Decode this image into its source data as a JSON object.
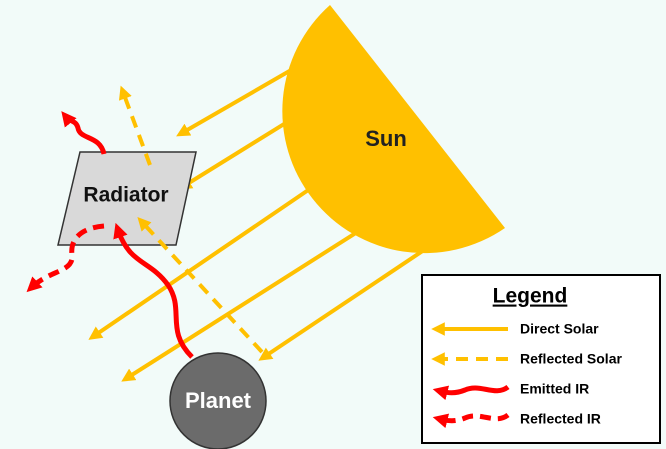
{
  "sun": {
    "label": "Sun"
  },
  "radiator": {
    "label": "Radiator"
  },
  "planet": {
    "label": "Planet"
  },
  "legend": {
    "title": "Legend",
    "items": [
      "Direct Solar",
      "Reflected Solar",
      "Emitted IR",
      "Reflected IR"
    ]
  }
}
